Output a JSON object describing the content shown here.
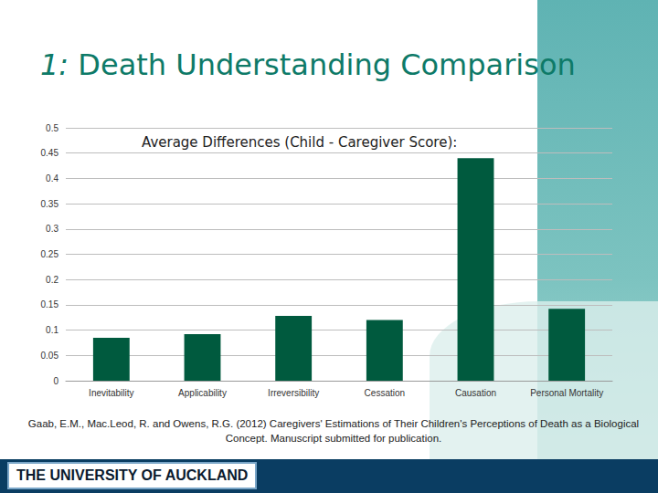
{
  "slide": {
    "title_number": "1:",
    "title_text": "Death Understanding Comparison",
    "citation": "Gaab, E.M., Mac.Leod, R. and Owens, R.G. (2012) Caregivers' Estimations of Their Children's Perceptions of Death as a Biological Concept. Manuscript submitted for publication.",
    "logo": "THE UNIVERSITY OF AUCKLAND"
  },
  "chart_data": {
    "type": "bar",
    "title": "Average Differences (Child - Caregiver Score):",
    "categories": [
      "Inevitability",
      "Applicability",
      "Irreversibility",
      "Cessation",
      "Causation",
      "Personal Mortality"
    ],
    "values": [
      0.085,
      0.092,
      0.128,
      0.12,
      0.44,
      0.142
    ],
    "color": "#005a3e",
    "ylim": [
      0,
      0.5
    ],
    "yticks": [
      0,
      0.05,
      0.1,
      0.15,
      0.2,
      0.25,
      0.3,
      0.35,
      0.4,
      0.45,
      0.5
    ],
    "grid": true
  }
}
